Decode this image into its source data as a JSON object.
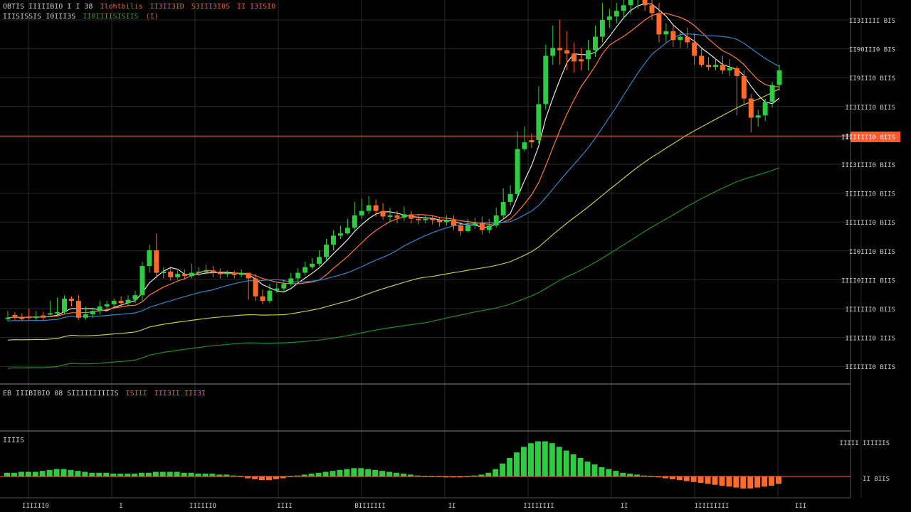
{
  "header": {
    "line1": [
      {
        "text": "OBTIS IIIIIBIO I I 38",
        "color": "#cfcfcf"
      },
      {
        "text": "Ilohtbilis",
        "color": "#ff5a2a"
      },
      {
        "text": "II3II3ID",
        "color": "#ff5a2a"
      },
      {
        "text": "S3III3I0S",
        "color": "#ff5a2a"
      },
      {
        "text": "II I3ISIO",
        "color": "#ff5a2a"
      }
    ],
    "line2": [
      {
        "text": "IIISISSIS I0III3S",
        "color": "#cfcfcf"
      },
      {
        "text": "II0IIIISISIIS",
        "color": "#2fa82f"
      },
      {
        "text": "(I)",
        "color": "#ff5a2a"
      }
    ]
  },
  "subpanel_label": [
    {
      "text": "EB IIIBIBIO 08 SIIIIIIIIIIS",
      "color": "#cfcfcf"
    },
    {
      "text": "ISIII",
      "color": "#ff5a2a"
    },
    {
      "text": "III3II III3I",
      "color": "#ff5a2a"
    }
  ],
  "macd_label": "IIIIS",
  "colors": {
    "up": "#2ecc40",
    "down": "#ff6a2a",
    "ma_fast": "#e8e8e8",
    "ma_mid": "#ff7a30",
    "ma_slow": "#2f86c8",
    "ma_long": "#c8c840",
    "ma_xlong": "#1e8f1e",
    "price_line": "#ff5a2a",
    "grid": "#2a2a2a"
  },
  "chart_data": {
    "type": "candlestick",
    "y_axis_labels": [
      "II3IIIII BIS",
      "II90III0 BIS",
      "II9III0 BIIS",
      "II3IIII0 BIIS",
      "IIIIIII0 BIIS",
      "III3IIII0 BIIS",
      "IIIIIII0 BIIS",
      "IIIIIII0 BIIS",
      "II0III0 BIIS",
      "IIII0IIII BIIS",
      "IIIIIII0 BIIS",
      "IIIIIII0 IIIS",
      "IIIIIII0 BIIS"
    ],
    "current_price_label": "IIIIIIII0 BIIS",
    "macd_axis_labels": [
      "IIIII IIIIIIS",
      "II BIIS"
    ],
    "x_axis_labels": [
      "IIIIII0",
      "I",
      "IIIIIIO",
      "IIII",
      "BIIIIIII",
      "II",
      "IIIIIIII",
      "II",
      "IIIIIIIII",
      "III"
    ],
    "price_range": [
      0,
      520
    ],
    "candles": [
      [
        80,
        80,
        92,
        74,
        1
      ],
      [
        85,
        82,
        90,
        76,
        0
      ],
      [
        80,
        80,
        88,
        74,
        0
      ],
      [
        82,
        82,
        96,
        76,
        0
      ],
      [
        80,
        82,
        92,
        76,
        1
      ],
      [
        84,
        80,
        90,
        76,
        0
      ],
      [
        86,
        88,
        110,
        84,
        1
      ],
      [
        88,
        90,
        116,
        84,
        1
      ],
      [
        90,
        114,
        120,
        86,
        1
      ],
      [
        114,
        110,
        118,
        100,
        0
      ],
      [
        110,
        80,
        120,
        76,
        0
      ],
      [
        80,
        86,
        100,
        76,
        1
      ],
      [
        86,
        92,
        98,
        80,
        1
      ],
      [
        92,
        100,
        110,
        86,
        1
      ],
      [
        100,
        104,
        110,
        96,
        1
      ],
      [
        104,
        110,
        114,
        100,
        1
      ],
      [
        110,
        106,
        118,
        100,
        0
      ],
      [
        106,
        112,
        120,
        102,
        1
      ],
      [
        112,
        120,
        128,
        106,
        1
      ],
      [
        120,
        172,
        180,
        110,
        1
      ],
      [
        172,
        200,
        210,
        160,
        1
      ],
      [
        200,
        160,
        230,
        150,
        0
      ],
      [
        160,
        162,
        170,
        150,
        1
      ],
      [
        162,
        152,
        168,
        146,
        0
      ],
      [
        152,
        158,
        164,
        148,
        1
      ],
      [
        158,
        154,
        166,
        148,
        0
      ],
      [
        154,
        160,
        176,
        150,
        1
      ],
      [
        160,
        162,
        170,
        154,
        1
      ],
      [
        162,
        164,
        174,
        156,
        1
      ],
      [
        164,
        160,
        172,
        152,
        0
      ],
      [
        160,
        158,
        168,
        150,
        0
      ],
      [
        158,
        160,
        164,
        152,
        1
      ],
      [
        160,
        156,
        164,
        150,
        0
      ],
      [
        156,
        160,
        166,
        152,
        1
      ],
      [
        160,
        150,
        158,
        112,
        0
      ],
      [
        150,
        118,
        158,
        110,
        0
      ],
      [
        118,
        110,
        130,
        104,
        0
      ],
      [
        110,
        128,
        140,
        106,
        1
      ],
      [
        128,
        132,
        142,
        124,
        1
      ],
      [
        132,
        140,
        148,
        126,
        1
      ],
      [
        140,
        150,
        160,
        136,
        1
      ],
      [
        150,
        160,
        168,
        144,
        1
      ],
      [
        160,
        170,
        180,
        156,
        1
      ],
      [
        170,
        176,
        186,
        166,
        1
      ],
      [
        176,
        188,
        200,
        172,
        1
      ],
      [
        188,
        210,
        220,
        180,
        1
      ],
      [
        210,
        226,
        236,
        200,
        1
      ],
      [
        226,
        230,
        244,
        220,
        1
      ],
      [
        230,
        240,
        256,
        228,
        1
      ],
      [
        240,
        262,
        286,
        236,
        1
      ],
      [
        262,
        270,
        292,
        256,
        1
      ],
      [
        270,
        280,
        296,
        264,
        1
      ],
      [
        280,
        270,
        290,
        260,
        0
      ],
      [
        270,
        260,
        284,
        254,
        0
      ],
      [
        260,
        262,
        276,
        250,
        1
      ],
      [
        262,
        258,
        270,
        248,
        0
      ],
      [
        258,
        264,
        278,
        252,
        1
      ],
      [
        264,
        256,
        270,
        248,
        0
      ],
      [
        256,
        254,
        264,
        246,
        0
      ],
      [
        254,
        256,
        262,
        248,
        1
      ],
      [
        256,
        254,
        262,
        246,
        0
      ],
      [
        254,
        250,
        258,
        242,
        0
      ],
      [
        250,
        254,
        262,
        244,
        1
      ],
      [
        254,
        244,
        262,
        236,
        0
      ],
      [
        244,
        234,
        250,
        226,
        0
      ],
      [
        234,
        244,
        256,
        232,
        1
      ],
      [
        244,
        248,
        258,
        238,
        1
      ],
      [
        248,
        236,
        260,
        228,
        0
      ],
      [
        236,
        244,
        256,
        230,
        1
      ],
      [
        244,
        262,
        276,
        240,
        1
      ],
      [
        262,
        286,
        310,
        254,
        1
      ],
      [
        286,
        300,
        316,
        280,
        1
      ],
      [
        300,
        380,
        412,
        296,
        1
      ],
      [
        380,
        392,
        420,
        376,
        1
      ],
      [
        392,
        396,
        408,
        382,
        0
      ],
      [
        396,
        460,
        492,
        390,
        1
      ],
      [
        460,
        546,
        566,
        450,
        1
      ],
      [
        546,
        560,
        600,
        530,
        1
      ],
      [
        560,
        556,
        610,
        530,
        0
      ],
      [
        556,
        550,
        590,
        520,
        0
      ],
      [
        550,
        536,
        570,
        516,
        0
      ],
      [
        536,
        540,
        560,
        520,
        0
      ],
      [
        540,
        556,
        574,
        520,
        1
      ],
      [
        556,
        580,
        600,
        544,
        1
      ],
      [
        580,
        610,
        640,
        570,
        1
      ],
      [
        610,
        616,
        630,
        596,
        1
      ],
      [
        616,
        626,
        640,
        604,
        1
      ],
      [
        626,
        636,
        650,
        612,
        1
      ],
      [
        636,
        646,
        660,
        620,
        1
      ],
      [
        646,
        650,
        660,
        630,
        1
      ],
      [
        650,
        636,
        660,
        626,
        0
      ],
      [
        636,
        622,
        650,
        610,
        0
      ],
      [
        622,
        584,
        640,
        570,
        0
      ],
      [
        584,
        590,
        604,
        570,
        1
      ],
      [
        590,
        574,
        600,
        562,
        0
      ],
      [
        574,
        580,
        590,
        560,
        1
      ],
      [
        580,
        570,
        596,
        560,
        0
      ],
      [
        570,
        546,
        586,
        530,
        0
      ],
      [
        546,
        530,
        560,
        526,
        0
      ],
      [
        530,
        526,
        544,
        520,
        0
      ],
      [
        526,
        530,
        542,
        520,
        1
      ],
      [
        530,
        520,
        546,
        514,
        0
      ],
      [
        520,
        524,
        540,
        510,
        1
      ],
      [
        524,
        510,
        528,
        440,
        0
      ],
      [
        510,
        470,
        520,
        460,
        0
      ],
      [
        470,
        436,
        478,
        410,
        0
      ],
      [
        436,
        440,
        450,
        420,
        1
      ],
      [
        440,
        464,
        470,
        430,
        1
      ],
      [
        464,
        494,
        500,
        454,
        1
      ],
      [
        494,
        520,
        530,
        484,
        1
      ]
    ],
    "macd_histogram": [
      4,
      4,
      5,
      5,
      5,
      6,
      7,
      8,
      8,
      7,
      6,
      5,
      4,
      4,
      4,
      3,
      3,
      3,
      3,
      4,
      4,
      5,
      5,
      5,
      5,
      4,
      4,
      3,
      3,
      3,
      2,
      2,
      1,
      0,
      -2,
      -3,
      -4,
      -4,
      -3,
      -2,
      0,
      1,
      2,
      3,
      4,
      5,
      6,
      7,
      8,
      9,
      9,
      8,
      7,
      6,
      5,
      4,
      3,
      2,
      1,
      0,
      0,
      0,
      -1,
      -1,
      -1,
      0,
      1,
      2,
      4,
      8,
      14,
      20,
      26,
      32,
      36,
      38,
      38,
      36,
      32,
      28,
      24,
      20,
      16,
      13,
      10,
      8,
      6,
      4,
      3,
      2,
      1,
      0,
      -1,
      -2,
      -3,
      -4,
      -5,
      -6,
      -7,
      -8,
      -9,
      -10,
      -11,
      -12,
      -13,
      -13,
      -12,
      -11,
      -10,
      -8
    ]
  }
}
